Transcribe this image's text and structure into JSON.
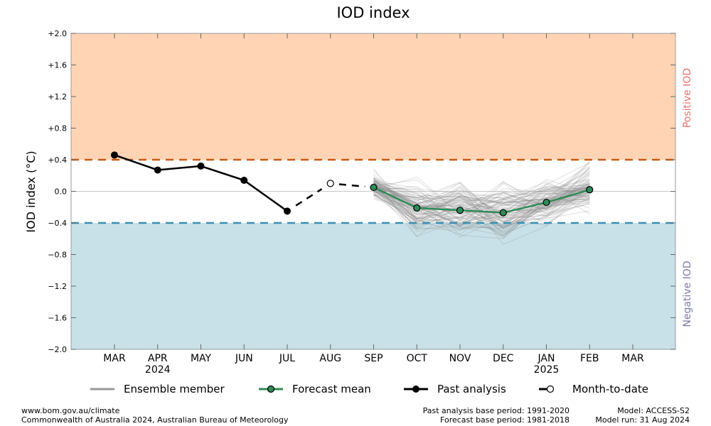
{
  "chart_data": {
    "type": "line",
    "title": "IOD index",
    "ylabel": "IOD index (°C)",
    "ylim": [
      -2.0,
      2.0
    ],
    "yticks": [
      "+2.0",
      "+1.6",
      "+1.2",
      "+0.8",
      "+0.4",
      "0.0",
      "−0.4",
      "−0.8",
      "−1.2",
      "−1.6",
      "−2.0"
    ],
    "months": [
      "MAR",
      "APR",
      "MAY",
      "JUN",
      "JUL",
      "AUG",
      "SEP",
      "OCT",
      "NOV",
      "DEC",
      "JAN",
      "FEB",
      "MAR"
    ],
    "years": [
      {
        "month": "APR",
        "label": "2024"
      },
      {
        "month": "JAN",
        "label": "2025"
      }
    ],
    "thresholds": {
      "positive": 0.4,
      "negative": -0.4
    },
    "zone_labels": {
      "positive": "Positive IOD",
      "negative": "Negative IOD"
    },
    "colors": {
      "positive_zone": "#ffd4b4",
      "negative_zone": "#c8e1e8",
      "positive_line": "#c85a14",
      "negative_line": "#3a8fb0",
      "positive_text": "#e8706a",
      "negative_text": "#7a7aa8",
      "forecast_mean": "#2e8b57",
      "ensemble": "#999999"
    },
    "series": [
      {
        "name": "Past analysis",
        "x": [
          "MAR",
          "APR",
          "MAY",
          "JUN",
          "JUL"
        ],
        "values": [
          0.46,
          0.27,
          0.32,
          0.14,
          -0.25
        ]
      },
      {
        "name": "Month-to-date",
        "x": [
          "JUL",
          "AUG",
          "SEP"
        ],
        "values": [
          -0.25,
          0.1,
          0.05
        ]
      },
      {
        "name": "Forecast mean",
        "x": [
          "SEP",
          "OCT",
          "NOV",
          "DEC",
          "JAN",
          "FEB"
        ],
        "values": [
          0.05,
          -0.21,
          -0.24,
          -0.27,
          -0.14,
          0.02
        ]
      }
    ],
    "ensemble": {
      "name": "Ensemble member",
      "x_start": "SEP",
      "x_end": "FEB",
      "count": 99
    }
  },
  "legend": {
    "ensemble": "Ensemble member",
    "forecast_mean": "Forecast mean",
    "past_analysis": "Past analysis",
    "month_to_date": "Month-to-date"
  },
  "footer": {
    "left_1": "www.bom.gov.au/climate",
    "left_2": "Commonwealth of Australia 2024, Australian Bureau of Meteorology",
    "mid_1": "Past analysis base period: 1991-2020",
    "mid_2": "Forecast base period: 1981-2018",
    "right_1": "Model: ACCESS-S2",
    "right_2": "Model run: 31 Aug 2024"
  }
}
